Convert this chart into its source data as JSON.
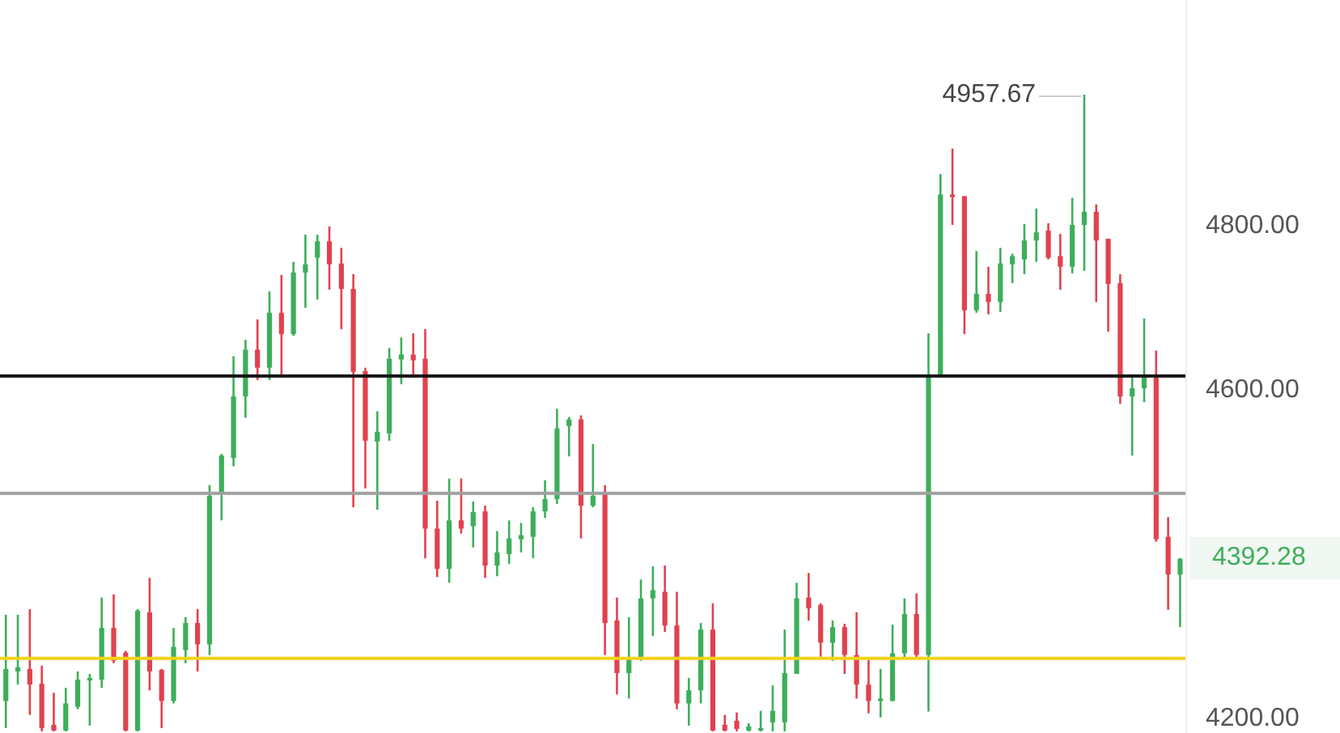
{
  "chart_data": {
    "type": "candlestick",
    "categories": [
      null,
      null,
      null,
      null,
      null,
      null,
      null,
      null,
      null,
      null,
      null,
      null,
      null,
      null,
      null,
      null,
      null,
      null,
      null,
      null,
      null,
      null,
      null,
      null,
      null,
      null,
      null,
      null,
      null,
      null,
      null,
      null,
      null,
      null,
      null,
      null,
      null,
      null,
      null,
      null,
      null,
      null,
      null,
      null,
      null,
      null,
      null,
      null,
      null,
      null,
      null,
      null,
      null,
      null,
      null,
      null,
      null,
      null,
      null,
      null,
      null,
      null,
      null,
      null,
      null,
      null,
      null,
      null,
      null,
      null,
      null,
      null,
      null,
      null,
      null,
      null,
      null,
      null,
      null,
      null,
      null,
      null,
      null,
      null,
      null,
      null,
      null,
      null,
      null,
      null,
      null,
      null,
      null,
      null,
      null,
      null,
      null,
      null,
      null
    ],
    "ohlc": [
      [
        4219,
        4324,
        4186,
        4258
      ],
      [
        4255,
        4324,
        4239,
        4260
      ],
      [
        4258,
        4331,
        4202,
        4239
      ],
      [
        4240,
        4262,
        4182,
        4186
      ],
      [
        4190,
        4229,
        4182,
        4183
      ],
      [
        4183,
        4235,
        4182,
        4216
      ],
      [
        4212,
        4255,
        4209,
        4245
      ],
      [
        4244,
        4252,
        4189,
        4247
      ],
      [
        4245,
        4345,
        4235,
        4308
      ],
      [
        4308,
        4349,
        4265,
        4268
      ],
      [
        4278,
        4280,
        4182,
        4183
      ],
      [
        4183,
        4331,
        4182,
        4329
      ],
      [
        4327,
        4369,
        4232,
        4255
      ],
      [
        4257,
        4258,
        4186,
        4219
      ],
      [
        4219,
        4308,
        4216,
        4285
      ],
      [
        4281,
        4321,
        4265,
        4314
      ],
      [
        4314,
        4331,
        4255,
        4288
      ],
      [
        4288,
        4482,
        4275,
        4469
      ],
      [
        4472,
        4520,
        4439,
        4518
      ],
      [
        4515,
        4639,
        4505,
        4590
      ],
      [
        4590,
        4659,
        4564,
        4647
      ],
      [
        4647,
        4684,
        4610,
        4625
      ],
      [
        4625,
        4718,
        4610,
        4692
      ],
      [
        4692,
        4738,
        4616,
        4666
      ],
      [
        4666,
        4754,
        4664,
        4741
      ],
      [
        4741,
        4787,
        4698,
        4751
      ],
      [
        4759,
        4787,
        4708,
        4779
      ],
      [
        4779,
        4797,
        4720,
        4751
      ],
      [
        4752,
        4771,
        4672,
        4721
      ],
      [
        4721,
        4739,
        4455,
        4620
      ],
      [
        4621,
        4625,
        4478,
        4536
      ],
      [
        4535,
        4572,
        4452,
        4547
      ],
      [
        4545,
        4649,
        4536,
        4636
      ],
      [
        4635,
        4662,
        4605,
        4641
      ],
      [
        4641,
        4667,
        4613,
        4634
      ],
      [
        4636,
        4672,
        4393,
        4429
      ],
      [
        4429,
        4463,
        4370,
        4380
      ],
      [
        4380,
        4490,
        4363,
        4439
      ],
      [
        4439,
        4490,
        4423,
        4429
      ],
      [
        4432,
        4462,
        4406,
        4449
      ],
      [
        4450,
        4457,
        4369,
        4384
      ],
      [
        4384,
        4426,
        4371,
        4400
      ],
      [
        4398,
        4439,
        4386,
        4417
      ],
      [
        4416,
        4436,
        4400,
        4421
      ],
      [
        4419,
        4455,
        4393,
        4450
      ],
      [
        4450,
        4488,
        4442,
        4465
      ],
      [
        4465,
        4575,
        4459,
        4551
      ],
      [
        4554,
        4565,
        4517,
        4562
      ],
      [
        4562,
        4567,
        4417,
        4457
      ],
      [
        4457,
        4532,
        4455,
        4469
      ],
      [
        4472,
        4482,
        4275,
        4314
      ],
      [
        4317,
        4345,
        4227,
        4253
      ],
      [
        4253,
        4321,
        4222,
        4270
      ],
      [
        4270,
        4367,
        4268,
        4344
      ],
      [
        4344,
        4383,
        4298,
        4354
      ],
      [
        4352,
        4384,
        4303,
        4311
      ],
      [
        4311,
        4352,
        4209,
        4216
      ],
      [
        4216,
        4247,
        4189,
        4232
      ],
      [
        4232,
        4314,
        4216,
        4306
      ],
      [
        4306,
        4338,
        4182,
        4183
      ],
      [
        4190,
        4202,
        4182,
        4183
      ],
      [
        4195,
        4205,
        4182,
        4185
      ],
      [
        4183,
        4192,
        4182,
        4188
      ],
      [
        4183,
        4207,
        4182,
        4186
      ],
      [
        4193,
        4238,
        4182,
        4207
      ],
      [
        4193,
        4306,
        4182,
        4253
      ],
      [
        4252,
        4363,
        4252,
        4344
      ],
      [
        4345,
        4375,
        4317,
        4332
      ],
      [
        4336,
        4338,
        4273,
        4290
      ],
      [
        4290,
        4317,
        4268,
        4309
      ],
      [
        4309,
        4313,
        4252,
        4275
      ],
      [
        4275,
        4327,
        4222,
        4239
      ],
      [
        4239,
        4269,
        4204,
        4219
      ],
      [
        4219,
        4258,
        4199,
        4222
      ],
      [
        4219,
        4312,
        4219,
        4277
      ],
      [
        4277,
        4344,
        4271,
        4325
      ],
      [
        4325,
        4350,
        4271,
        4275
      ],
      [
        4275,
        4667,
        4206,
        4614
      ],
      [
        4616,
        4861,
        4614,
        4836
      ],
      [
        4836,
        4892,
        4799,
        4833
      ],
      [
        4834,
        4834,
        4666,
        4695
      ],
      [
        4695,
        4767,
        4692,
        4715
      ],
      [
        4715,
        4748,
        4690,
        4705
      ],
      [
        4705,
        4771,
        4693,
        4752
      ],
      [
        4751,
        4764,
        4728,
        4761
      ],
      [
        4757,
        4800,
        4739,
        4780
      ],
      [
        4780,
        4819,
        4754,
        4790
      ],
      [
        4792,
        4801,
        4757,
        4759
      ],
      [
        4761,
        4788,
        4720,
        4748
      ],
      [
        4748,
        4832,
        4740,
        4799
      ],
      [
        4799,
        4957.67,
        4743,
        4815
      ],
      [
        4815,
        4824,
        4705,
        4780
      ],
      [
        4782,
        4782,
        4669,
        4727
      ],
      [
        4728,
        4739,
        4581,
        4590
      ],
      [
        4590,
        4614,
        4518,
        4600
      ],
      [
        4600,
        4685,
        4583,
        4613
      ],
      [
        4613,
        4646,
        4413,
        4416
      ],
      [
        4419,
        4443,
        4330,
        4373
      ],
      [
        4373,
        4393,
        4309,
        4392.28
      ]
    ],
    "colors": [
      "#3dae5b",
      "#3dae5b",
      "#e0424e",
      "#e0424e",
      "#e0424e",
      "#3dae5b",
      "#3dae5b",
      "#3dae5b",
      "#3dae5b",
      "#e0424e",
      "#e0424e",
      "#3dae5b",
      "#e0424e",
      "#e0424e",
      "#3dae5b",
      "#3dae5b",
      "#e0424e",
      "#3dae5b",
      "#3dae5b",
      "#3dae5b",
      "#3dae5b",
      "#e0424e",
      "#3dae5b",
      "#e0424e",
      "#3dae5b",
      "#3dae5b",
      "#3dae5b",
      "#e0424e",
      "#e0424e",
      "#e0424e",
      "#e0424e",
      "#3dae5b",
      "#3dae5b",
      "#3dae5b",
      "#e0424e",
      "#e0424e",
      "#e0424e",
      "#3dae5b",
      "#e0424e",
      "#3dae5b",
      "#e0424e",
      "#3dae5b",
      "#3dae5b",
      "#3dae5b",
      "#3dae5b",
      "#3dae5b",
      "#3dae5b",
      "#3dae5b",
      "#e0424e",
      "#3dae5b",
      "#e0424e",
      "#e0424e",
      "#3dae5b",
      "#3dae5b",
      "#3dae5b",
      "#e0424e",
      "#e0424e",
      "#3dae5b",
      "#3dae5b",
      "#e0424e",
      "#e0424e",
      "#e0424e",
      "#3dae5b",
      "#3dae5b",
      "#3dae5b",
      "#3dae5b",
      "#3dae5b",
      "#e0424e",
      "#e0424e",
      "#3dae5b",
      "#e0424e",
      "#e0424e",
      "#e0424e",
      "#3dae5b",
      "#3dae5b",
      "#3dae5b",
      "#e0424e",
      "#3dae5b",
      "#3dae5b",
      "#e0424e",
      "#e0424e",
      "#3dae5b",
      "#e0424e",
      "#3dae5b",
      "#3dae5b",
      "#3dae5b",
      "#3dae5b",
      "#e0424e",
      "#e0424e",
      "#3dae5b",
      "#3dae5b",
      "#e0424e",
      "#e0424e",
      "#e0424e",
      "#3dae5b",
      "#3dae5b",
      "#e0424e",
      "#e0424e",
      "#3dae5b"
    ],
    "ylim": [
      4180,
      5073
    ],
    "yticks": [
      {
        "value": 4200,
        "label": "4200.00"
      },
      {
        "value": 4600,
        "label": "4600.00"
      },
      {
        "value": 4800,
        "label": "4800.00"
      }
    ],
    "ref_lines": [
      {
        "axis": "y",
        "value": 4615,
        "color": "#111111"
      },
      {
        "axis": "y",
        "value": 4472,
        "color": "#a0a0a0"
      },
      {
        "axis": "y",
        "value": 4271,
        "color": "#f2d21b"
      }
    ],
    "annotations": [
      "4957.67",
      "4392.28"
    ]
  }
}
